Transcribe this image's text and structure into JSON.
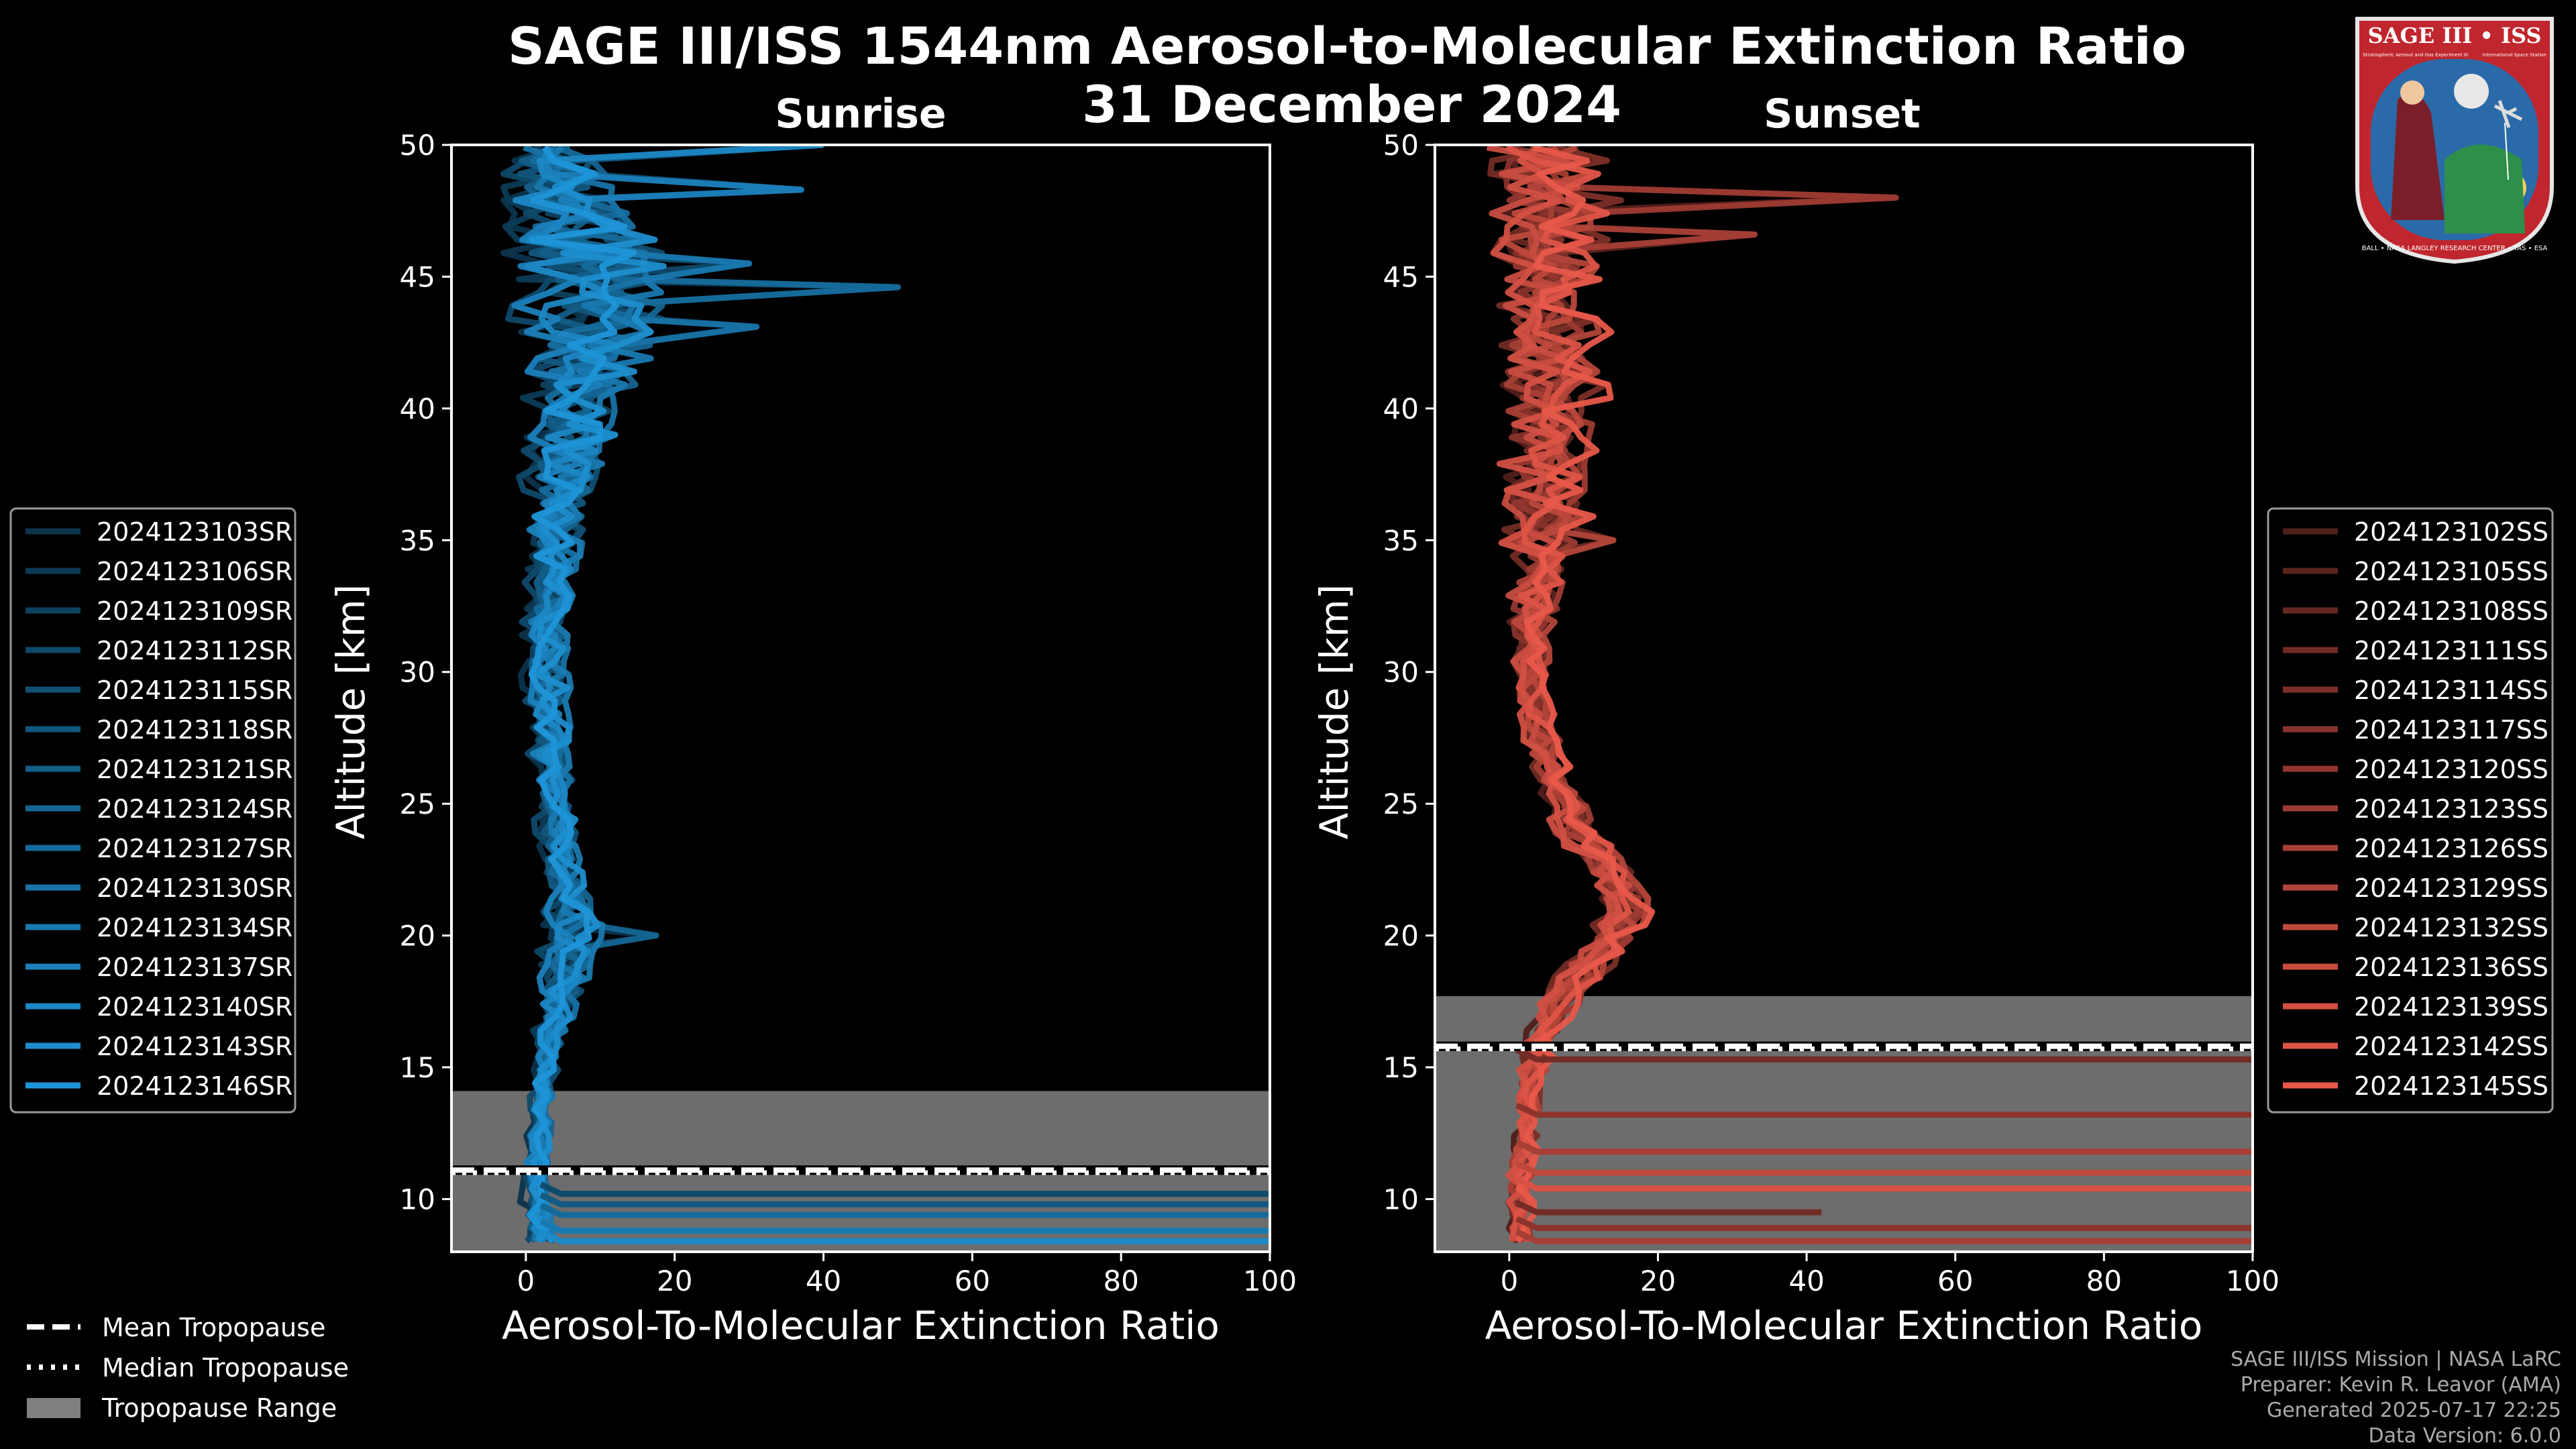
{
  "title_line1": "SAGE III/ISS 1544nm Aerosol-to-Molecular Extinction Ratio",
  "title_line2": "31 December 2024",
  "logo": {
    "top_text": "SAGE III • ISS",
    "sub_left": "Stratospheric Aerosol and Gas Experiment III",
    "sub_right": "International Space Station",
    "ring_text": "BALL • NASA LANGLEY RESEARCH CENTER • TAS • ESA"
  },
  "footer": {
    "line1": "SAGE III/ISS Mission | NASA LaRC",
    "line2": "Preparer: Kevin R. Leavor (AMA)",
    "line3": "Generated 2025-07-17 22:25",
    "line4": "Data Version: 6.0.0"
  },
  "tropopause_legend": {
    "mean": "Mean Tropopause",
    "median": "Median Tropopause",
    "range": "Tropopause Range"
  },
  "colors": {
    "sunrise_base": "#1f95d8",
    "sunset_base": "#e8584a",
    "tropopause_range": "#808080"
  },
  "chart_data": [
    {
      "type": "line",
      "title": "Sunrise",
      "xlabel": "Aerosol-To-Molecular Extinction Ratio",
      "ylabel": "Altitude [km]",
      "xlim": [
        -10,
        100
      ],
      "ylim": [
        8,
        50
      ],
      "xticks": [
        0,
        20,
        40,
        60,
        80,
        100
      ],
      "yticks": [
        10,
        15,
        20,
        25,
        30,
        35,
        40,
        45,
        50
      ],
      "tropopause": {
        "mean": 11.1,
        "median": 11.0,
        "range": [
          8,
          14.1
        ]
      },
      "series": [
        {
          "name": "2024123103SR"
        },
        {
          "name": "2024123106SR"
        },
        {
          "name": "2024123109SR"
        },
        {
          "name": "2024123112SR"
        },
        {
          "name": "2024123115SR"
        },
        {
          "name": "2024123118SR"
        },
        {
          "name": "2024123121SR"
        },
        {
          "name": "2024123124SR"
        },
        {
          "name": "2024123127SR"
        },
        {
          "name": "2024123130SR"
        },
        {
          "name": "2024123134SR"
        },
        {
          "name": "2024123137SR"
        },
        {
          "name": "2024123140SR"
        },
        {
          "name": "2024123143SR"
        },
        {
          "name": "2024123146SR"
        }
      ],
      "profile_shape": {
        "altitudes": [
          8.5,
          10,
          12,
          14,
          16,
          18,
          20,
          22,
          24,
          26,
          28,
          30,
          32,
          34,
          36,
          38,
          40,
          42,
          44,
          46,
          48,
          50
        ],
        "median_ratio": [
          2,
          1.5,
          1.5,
          2,
          3,
          4.5,
          6,
          5,
          4,
          3.5,
          3,
          2.5,
          3,
          3.5,
          4,
          5,
          6,
          7,
          8,
          7,
          4,
          2
        ],
        "spread": [
          2,
          2,
          1.5,
          1.5,
          2,
          3,
          4,
          3,
          2.5,
          2.5,
          2.5,
          3,
          3,
          3.5,
          4,
          5,
          6,
          8,
          10,
          10,
          8,
          5
        ]
      },
      "spikes": [
        {
          "alt": 20.0,
          "x": 17.5
        },
        {
          "alt": 44.6,
          "x": 50
        },
        {
          "alt": 43.1,
          "x": 31
        },
        {
          "alt": 45.5,
          "x": 30
        },
        {
          "alt": 48.3,
          "x": 37
        },
        {
          "alt": 50.0,
          "x": 40
        },
        {
          "alt": 39.0,
          "x": 12
        }
      ],
      "horizontal_tails": [
        {
          "alt": 10.2,
          "x": 100
        },
        {
          "alt": 9.8,
          "x": 100
        },
        {
          "alt": 9.4,
          "x": 100
        },
        {
          "alt": 8.8,
          "x": 100
        },
        {
          "alt": 8.4,
          "x": 100
        }
      ]
    },
    {
      "type": "line",
      "title": "Sunset",
      "xlabel": "Aerosol-To-Molecular Extinction Ratio",
      "ylabel": "Altitude [km]",
      "xlim": [
        -10,
        100
      ],
      "ylim": [
        8,
        50
      ],
      "xticks": [
        0,
        20,
        40,
        60,
        80,
        100
      ],
      "yticks": [
        10,
        15,
        20,
        25,
        30,
        35,
        40,
        45,
        50
      ],
      "tropopause": {
        "mean": 15.8,
        "median": 15.7,
        "range": [
          8,
          17.7
        ]
      },
      "series": [
        {
          "name": "2024123102SS"
        },
        {
          "name": "2024123105SS"
        },
        {
          "name": "2024123108SS"
        },
        {
          "name": "2024123111SS"
        },
        {
          "name": "2024123114SS"
        },
        {
          "name": "2024123117SS"
        },
        {
          "name": "2024123120SS"
        },
        {
          "name": "2024123123SS"
        },
        {
          "name": "2024123126SS"
        },
        {
          "name": "2024123129SS"
        },
        {
          "name": "2024123132SS"
        },
        {
          "name": "2024123136SS"
        },
        {
          "name": "2024123139SS"
        },
        {
          "name": "2024123142SS"
        },
        {
          "name": "2024123145SS"
        }
      ],
      "profile_shape": {
        "altitudes": [
          8.5,
          10,
          12,
          14,
          16,
          18,
          20,
          21,
          22,
          24,
          26,
          28,
          30,
          32,
          34,
          36,
          38,
          40,
          42,
          44,
          46,
          48,
          50
        ],
        "median_ratio": [
          1.5,
          1.5,
          2,
          2.5,
          4,
          8,
          14,
          16,
          15,
          9,
          6,
          4,
          3,
          3,
          4,
          5,
          5,
          6,
          6,
          6,
          5,
          6,
          4
        ],
        "spread": [
          1.5,
          1.5,
          1.5,
          1.5,
          2,
          3,
          3,
          3,
          3,
          3,
          2.5,
          2,
          2,
          3,
          4,
          5,
          5,
          6,
          6,
          6,
          7,
          8,
          8
        ]
      },
      "spikes": [
        {
          "alt": 48.0,
          "x": 52
        },
        {
          "alt": 46.6,
          "x": 33
        },
        {
          "alt": 35.0,
          "x": 14
        },
        {
          "alt": 24.8,
          "x": 10
        }
      ],
      "horizontal_tails": [
        {
          "alt": 15.3,
          "x": 100
        },
        {
          "alt": 13.2,
          "x": 100
        },
        {
          "alt": 11.8,
          "x": 100
        },
        {
          "alt": 11.0,
          "x": 100
        },
        {
          "alt": 10.4,
          "x": 100
        },
        {
          "alt": 9.5,
          "x": 42
        },
        {
          "alt": 8.9,
          "x": 100
        },
        {
          "alt": 8.4,
          "x": 100
        }
      ]
    }
  ]
}
